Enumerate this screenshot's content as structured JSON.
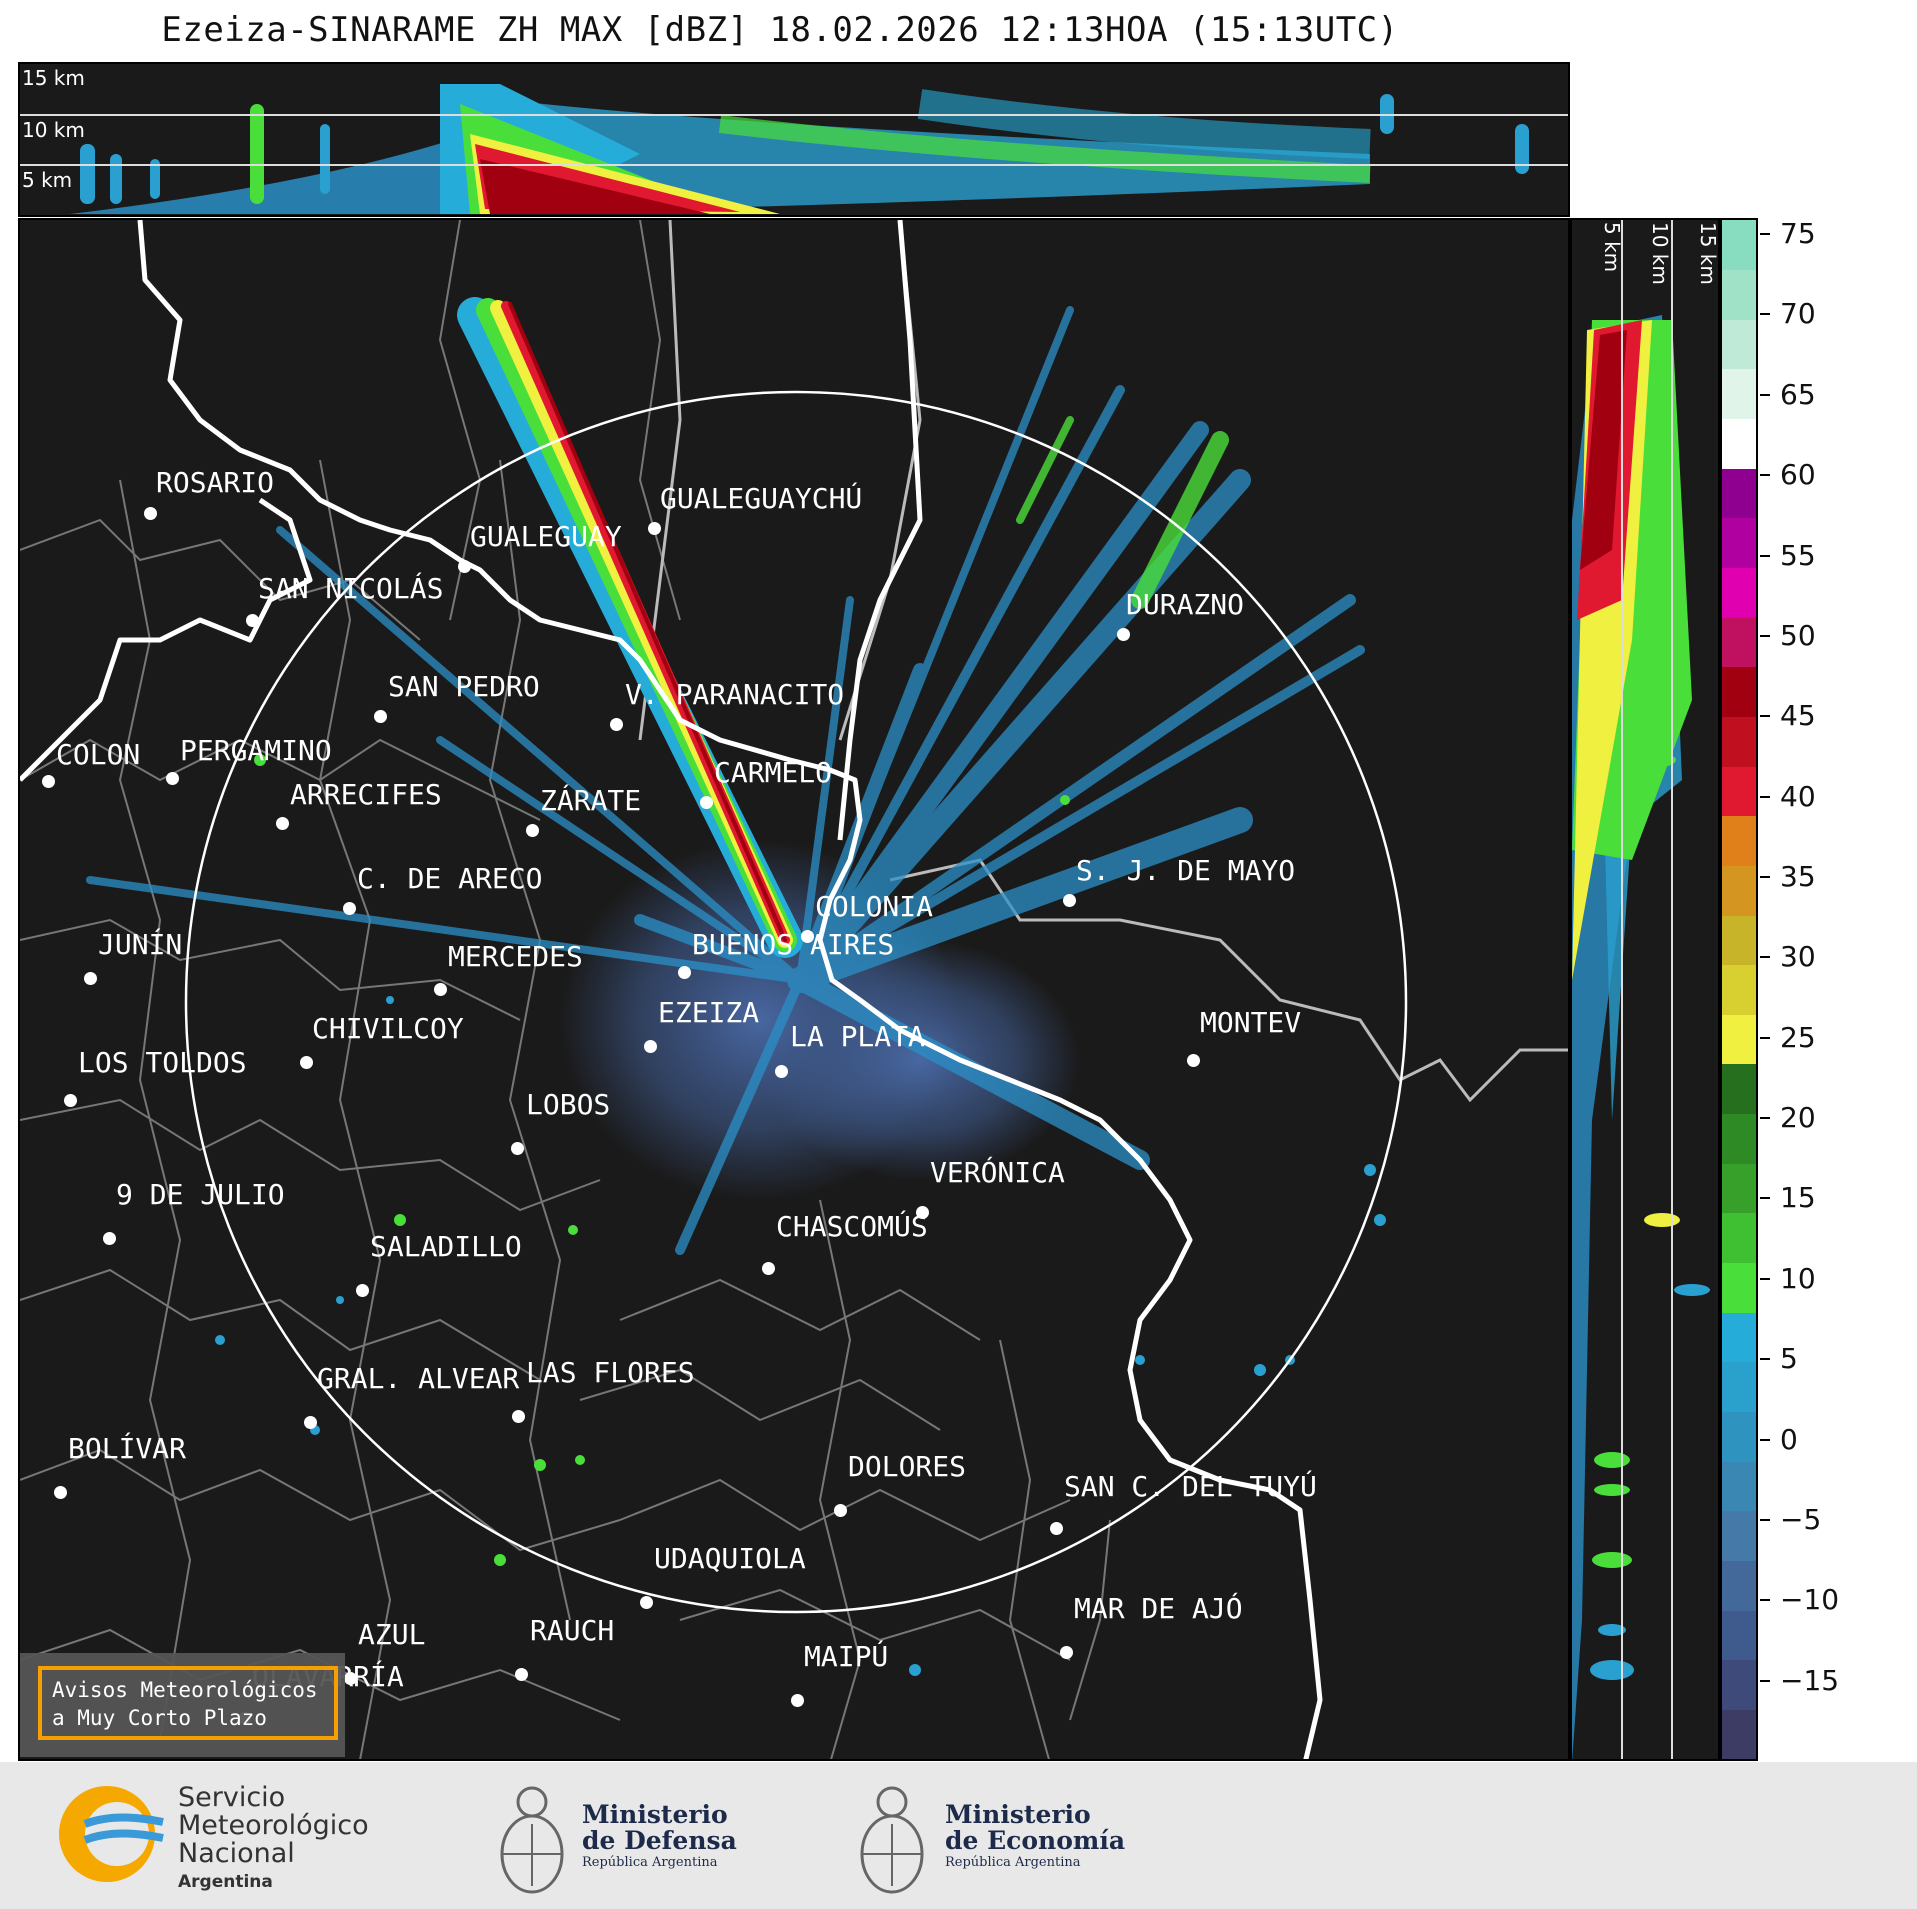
{
  "title": "Ezeiza-SINARAME ZH MAX [dBZ] 18.02.2026 12:13HOA (15:13UTC)",
  "top_km_labels": [
    "15 km",
    "10 km",
    "5 km"
  ],
  "side_km_labels": [
    "5 km",
    "10 km",
    "15 km"
  ],
  "cities": [
    {
      "name": "ROSARIO"
    },
    {
      "name": "GUALEGUAYCHÚ"
    },
    {
      "name": "GUALEGUAY"
    },
    {
      "name": "SAN NICOLÁS"
    },
    {
      "name": "DURAZNO"
    },
    {
      "name": "SAN PEDRO"
    },
    {
      "name": "V. PARANACITO"
    },
    {
      "name": "COLON"
    },
    {
      "name": "PERGAMINO"
    },
    {
      "name": "CARMELO"
    },
    {
      "name": "ARRECIFES"
    },
    {
      "name": "ZÁRATE"
    },
    {
      "name": "S. J. DE MAYO"
    },
    {
      "name": "C. DE ARECO"
    },
    {
      "name": "COLONIA"
    },
    {
      "name": "JUNÍN"
    },
    {
      "name": "BUENOS AIRES"
    },
    {
      "name": "MERCEDES"
    },
    {
      "name": "MONTEV"
    },
    {
      "name": "EZEIZA"
    },
    {
      "name": "CHIVILCOY"
    },
    {
      "name": "LA PLATA"
    },
    {
      "name": "LOS TOLDOS"
    },
    {
      "name": "LOBOS"
    },
    {
      "name": "VERÓNICA"
    },
    {
      "name": "9 DE JULIO"
    },
    {
      "name": "CHASCOMÚS"
    },
    {
      "name": "SALADILLO"
    },
    {
      "name": "GRAL. ALVEAR"
    },
    {
      "name": "LAS FLORES"
    },
    {
      "name": "BOLÍVAR"
    },
    {
      "name": "DOLORES"
    },
    {
      "name": "SAN C. DEL TUYÚ"
    },
    {
      "name": "UDAQUIOLA"
    },
    {
      "name": "AZUL"
    },
    {
      "name": "RAUCH"
    },
    {
      "name": "MAR DE AJÓ"
    },
    {
      "name": "OLAVARRÍA"
    },
    {
      "name": "MAIPÚ"
    }
  ],
  "colorbar": {
    "unit": "dBZ",
    "ticks": [
      "75",
      "70",
      "65",
      "60",
      "55",
      "50",
      "45",
      "40",
      "35",
      "30",
      "25",
      "20",
      "15",
      "10",
      "5",
      "0",
      "−5",
      "−10",
      "−15"
    ],
    "tick_values": [
      75,
      70,
      65,
      60,
      55,
      50,
      45,
      40,
      35,
      30,
      25,
      20,
      15,
      10,
      5,
      0,
      -5,
      -10,
      -15
    ],
    "min": -20,
    "max": 76,
    "colors": [
      "#3c3c64",
      "#3d4a7a",
      "#3f5a8c",
      "#42699a",
      "#4579a8",
      "#3b87b4",
      "#2f93c0",
      "#2aa0cc",
      "#26acd8",
      "#4ade3a",
      "#3fc032",
      "#36a02b",
      "#2e8a25",
      "#256f1e",
      "#f0f040",
      "#d8d030",
      "#c8b428",
      "#d49620",
      "#e0801a",
      "#e01830",
      "#c01020",
      "#a00010",
      "#c01060",
      "#e000b0",
      "#b000a0",
      "#900090",
      "#ffffff",
      "#e0f4ea",
      "#c0ead8",
      "#a0e2c8",
      "#88dcc0"
    ]
  },
  "alert": {
    "line1": "Avisos Meteorológicos",
    "line2": "a Muy Corto Plazo"
  },
  "logos": {
    "smn": {
      "line1": "Servicio",
      "line2": "Meteorológico",
      "line3": "Nacional",
      "line4": "Argentina"
    },
    "defensa": {
      "line1": "Ministerio",
      "line2": "de Defensa",
      "line3": "República Argentina"
    },
    "economia": {
      "line1": "Ministerio",
      "line2": "de Economía",
      "line3": "República Argentina"
    }
  }
}
